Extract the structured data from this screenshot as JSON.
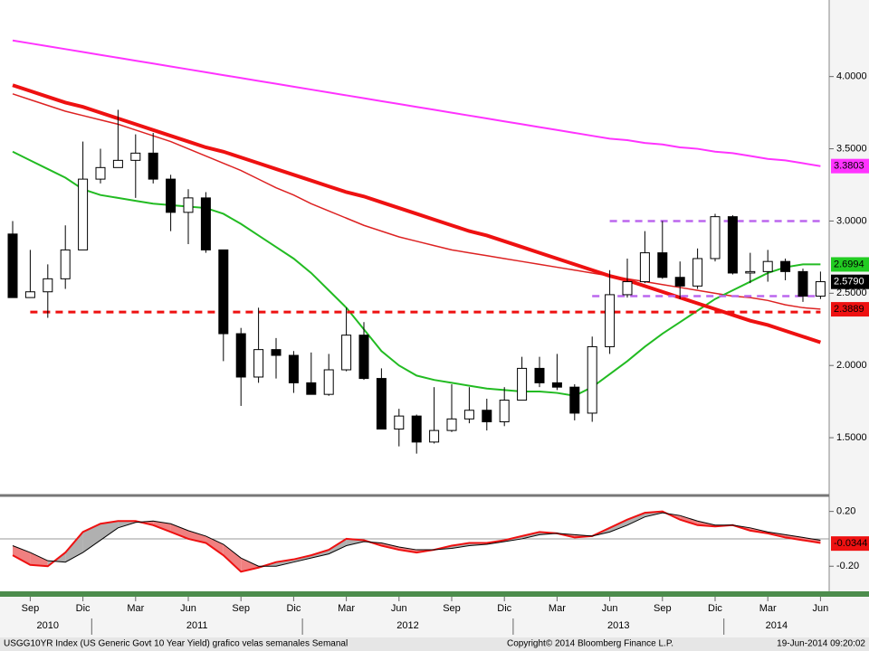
{
  "chart_data": [
    {
      "type": "candlestick",
      "categories": [
        null,
        "Sep",
        null,
        null,
        "Dic",
        null,
        null,
        "Mar",
        null,
        null,
        "Jun",
        null,
        null,
        "Sep",
        null,
        null,
        "Dic",
        null,
        null,
        "Mar",
        null,
        null,
        "Jun",
        null,
        null,
        "Sep",
        null,
        null,
        "Dic",
        null,
        null,
        "Mar",
        null,
        null,
        "Jun",
        null,
        null,
        "Sep",
        null,
        null,
        "Dic",
        null,
        null,
        "Mar",
        null,
        null,
        "Jun"
      ],
      "years": [
        "2010",
        "2011",
        "2012",
        "2013",
        "2014"
      ],
      "open": [
        2.91,
        2.47,
        2.51,
        2.6,
        2.8,
        3.29,
        3.37,
        3.42,
        3.47,
        3.29,
        3.06,
        3.16,
        2.8,
        2.22,
        1.92,
        2.11,
        2.07,
        1.88,
        1.8,
        1.97,
        2.21,
        1.91,
        1.56,
        1.65,
        1.47,
        1.55,
        1.63,
        1.69,
        1.61,
        1.76,
        1.98,
        1.88,
        1.85,
        1.67,
        2.13,
        2.49,
        2.58,
        2.78,
        2.61,
        2.55,
        2.74,
        3.03,
        2.64,
        2.65,
        2.72,
        2.65,
        2.48
      ],
      "high": [
        3.0,
        2.8,
        2.7,
        2.97,
        3.55,
        3.5,
        3.77,
        3.6,
        3.61,
        3.32,
        3.22,
        3.2,
        2.8,
        2.26,
        2.4,
        2.19,
        2.1,
        2.09,
        2.08,
        2.4,
        2.3,
        1.98,
        1.7,
        1.66,
        1.85,
        1.87,
        1.85,
        1.77,
        1.85,
        2.06,
        2.06,
        2.08,
        1.87,
        2.2,
        2.66,
        2.74,
        2.93,
        3.0,
        2.72,
        2.81,
        3.05,
        3.04,
        2.78,
        2.8,
        2.74,
        2.67,
        2.65
      ],
      "low": [
        2.47,
        2.47,
        2.33,
        2.53,
        2.8,
        3.26,
        3.37,
        3.16,
        3.26,
        2.93,
        2.84,
        2.78,
        2.03,
        1.72,
        1.88,
        1.91,
        1.81,
        1.8,
        1.79,
        1.96,
        1.9,
        1.56,
        1.44,
        1.39,
        1.46,
        1.54,
        1.6,
        1.55,
        1.58,
        1.76,
        1.85,
        1.83,
        1.62,
        1.61,
        2.08,
        2.47,
        2.57,
        2.6,
        2.46,
        2.53,
        2.72,
        2.63,
        2.57,
        2.58,
        2.59,
        2.44,
        2.46
      ],
      "close": [
        2.47,
        2.51,
        2.6,
        2.8,
        3.29,
        3.37,
        3.42,
        3.47,
        3.29,
        3.06,
        3.16,
        2.8,
        2.22,
        1.92,
        2.11,
        2.07,
        1.88,
        1.8,
        1.97,
        2.21,
        1.91,
        1.56,
        1.65,
        1.47,
        1.55,
        1.63,
        1.69,
        1.61,
        1.76,
        1.98,
        1.88,
        1.85,
        1.67,
        2.13,
        2.49,
        2.58,
        2.78,
        2.61,
        2.55,
        2.74,
        3.03,
        2.64,
        2.65,
        2.72,
        2.65,
        2.48,
        2.58
      ],
      "up_color": "#ffffff",
      "down_color": "#000000",
      "overlays": [
        {
          "color": "#ff33ff",
          "style": "solid",
          "width": 2,
          "values": [
            4.25,
            4.23,
            4.21,
            4.19,
            4.17,
            4.15,
            4.13,
            4.11,
            4.09,
            4.07,
            4.05,
            4.03,
            4.01,
            3.99,
            3.97,
            3.95,
            3.93,
            3.91,
            3.89,
            3.87,
            3.85,
            3.83,
            3.81,
            3.79,
            3.77,
            3.75,
            3.73,
            3.71,
            3.69,
            3.67,
            3.65,
            3.63,
            3.61,
            3.59,
            3.57,
            3.56,
            3.54,
            3.53,
            3.51,
            3.5,
            3.48,
            3.47,
            3.45,
            3.43,
            3.42,
            3.4,
            3.38
          ]
        },
        {
          "color": "#dd2222",
          "style": "solid",
          "width": 1.5,
          "values": [
            3.88,
            3.84,
            3.8,
            3.76,
            3.73,
            3.7,
            3.67,
            3.63,
            3.59,
            3.55,
            3.5,
            3.45,
            3.4,
            3.35,
            3.29,
            3.23,
            3.18,
            3.12,
            3.07,
            3.02,
            2.97,
            2.93,
            2.89,
            2.86,
            2.83,
            2.8,
            2.78,
            2.76,
            2.74,
            2.72,
            2.7,
            2.68,
            2.66,
            2.64,
            2.62,
            2.6,
            2.58,
            2.56,
            2.54,
            2.52,
            2.5,
            2.48,
            2.47,
            2.45,
            2.42,
            2.4,
            2.39
          ]
        },
        {
          "color": "#22bb22",
          "style": "solid",
          "width": 2,
          "values": [
            3.48,
            3.42,
            3.36,
            3.3,
            3.22,
            3.18,
            3.16,
            3.14,
            3.12,
            3.11,
            3.1,
            3.09,
            3.05,
            2.98,
            2.9,
            2.82,
            2.74,
            2.64,
            2.52,
            2.4,
            2.25,
            2.1,
            2.0,
            1.93,
            1.9,
            1.88,
            1.86,
            1.84,
            1.83,
            1.82,
            1.82,
            1.81,
            1.79,
            1.85,
            1.94,
            2.03,
            2.13,
            2.22,
            2.3,
            2.38,
            2.46,
            2.52,
            2.58,
            2.64,
            2.68,
            2.7,
            2.7
          ]
        },
        {
          "color": "#ee1111",
          "style": "solid",
          "width": 4,
          "values": [
            3.94,
            3.9,
            3.86,
            3.82,
            3.79,
            3.75,
            3.71,
            3.67,
            3.63,
            3.59,
            3.55,
            3.51,
            3.48,
            3.44,
            3.4,
            3.36,
            3.32,
            3.28,
            3.24,
            3.2,
            3.17,
            3.13,
            3.09,
            3.05,
            3.01,
            2.97,
            2.93,
            2.9,
            2.86,
            2.82,
            2.78,
            2.74,
            2.7,
            2.66,
            2.62,
            2.59,
            2.55,
            2.51,
            2.47,
            2.43,
            2.39,
            2.35,
            2.31,
            2.28,
            2.24,
            2.2,
            2.16
          ]
        },
        {
          "color": "#ee1111",
          "style": "dashed",
          "width": 3,
          "values": [
            null,
            2.37,
            2.37,
            2.37,
            2.37,
            2.37,
            2.37,
            2.37,
            2.37,
            2.37,
            2.37,
            2.37,
            2.37,
            2.37,
            2.37,
            2.37,
            2.37,
            2.37,
            2.37,
            2.37,
            2.37,
            2.37,
            2.37,
            2.37,
            2.37,
            2.37,
            2.37,
            2.37,
            2.37,
            2.37,
            2.37,
            2.37,
            2.37,
            2.37,
            2.37,
            2.37,
            2.37,
            2.37,
            2.37,
            2.37,
            2.37,
            2.37,
            2.37,
            2.37,
            2.37,
            2.37,
            2.37
          ]
        },
        {
          "color": "#bb66ee",
          "style": "dashed",
          "width": 2.5,
          "values": [
            null,
            null,
            null,
            null,
            null,
            null,
            null,
            null,
            null,
            null,
            null,
            null,
            null,
            null,
            null,
            null,
            null,
            null,
            null,
            null,
            null,
            null,
            null,
            null,
            null,
            null,
            null,
            null,
            null,
            null,
            null,
            null,
            null,
            null,
            3.0,
            3.0,
            3.0,
            3.0,
            3.0,
            3.0,
            3.0,
            3.0,
            3.0,
            3.0,
            3.0,
            3.0,
            3.0
          ]
        },
        {
          "color": "#bb66ee",
          "style": "dashed",
          "width": 2.5,
          "values": [
            null,
            null,
            null,
            null,
            null,
            null,
            null,
            null,
            null,
            null,
            null,
            null,
            null,
            null,
            null,
            null,
            null,
            null,
            null,
            null,
            null,
            null,
            null,
            null,
            null,
            null,
            null,
            null,
            null,
            null,
            null,
            null,
            null,
            2.48,
            2.48,
            2.48,
            2.48,
            2.48,
            2.48,
            2.48,
            2.48,
            2.48,
            2.48,
            2.48,
            2.48,
            2.48,
            2.48
          ]
        }
      ],
      "last_labels": [
        {
          "value": 3.3803,
          "color": "#ff33ff",
          "text_color": "#000000"
        },
        {
          "value": 2.6994,
          "color": "#22cc22",
          "text_color": "#000000"
        },
        {
          "value": 2.579,
          "label": "2.5790",
          "color": "#000000",
          "text_color": "#ffffff"
        },
        {
          "value": 2.3889,
          "color": "#ee1111",
          "text_color": "#000000"
        }
      ],
      "ylim": [
        1.1,
        4.53
      ],
      "yticks": [
        {
          "value": 1.5,
          "label": "1.5000"
        },
        {
          "value": 2.0,
          "label": "2.0000"
        },
        {
          "value": 2.5,
          "label": "2.5000"
        },
        {
          "value": 3.0,
          "label": "3.0000"
        },
        {
          "value": 3.5,
          "label": "3.5000"
        },
        {
          "value": 4.0,
          "label": "4.0000"
        }
      ]
    },
    {
      "type": "line",
      "series": [
        {
          "color": "#ee1111",
          "values": [
            -0.12,
            -0.19,
            -0.2,
            -0.1,
            0.05,
            0.11,
            0.13,
            0.13,
            0.1,
            0.05,
            0.0,
            -0.03,
            -0.12,
            -0.24,
            -0.21,
            -0.17,
            -0.15,
            -0.12,
            -0.08,
            0.0,
            -0.01,
            -0.05,
            -0.08,
            -0.1,
            -0.08,
            -0.05,
            -0.03,
            -0.03,
            -0.01,
            0.02,
            0.05,
            0.04,
            0.01,
            0.02,
            0.08,
            0.14,
            0.19,
            0.2,
            0.14,
            0.1,
            0.09,
            0.1,
            0.06,
            0.04,
            0.01,
            -0.01,
            -0.03
          ]
        },
        {
          "color": "#000000",
          "values": [
            -0.05,
            -0.1,
            -0.16,
            -0.17,
            -0.1,
            -0.01,
            0.08,
            0.12,
            0.13,
            0.11,
            0.06,
            0.02,
            -0.04,
            -0.14,
            -0.2,
            -0.2,
            -0.17,
            -0.14,
            -0.11,
            -0.05,
            -0.02,
            -0.03,
            -0.06,
            -0.08,
            -0.08,
            -0.07,
            -0.05,
            -0.04,
            -0.02,
            0.0,
            0.03,
            0.04,
            0.03,
            0.02,
            0.05,
            0.1,
            0.16,
            0.19,
            0.17,
            0.13,
            0.1,
            0.1,
            0.08,
            0.05,
            0.03,
            0.01,
            -0.01
          ]
        }
      ],
      "last_labels": [
        {
          "value": -0.0344,
          "color": "#ee1111",
          "text_color": "#000000"
        }
      ],
      "ylim": [
        -0.37,
        0.29
      ],
      "yticks": [
        {
          "value": -0.2,
          "label": "-0.20"
        },
        {
          "value": 0.2,
          "label": "0.20"
        }
      ]
    }
  ],
  "footer": {
    "left": "USGG10YR Index (US Generic Govt 10 Year Yield) grafico velas semanales  Semanal",
    "center": "Copyright© 2014 Bloomberg Finance L.P.",
    "right": "19-Jun-2014 09:20:02"
  }
}
